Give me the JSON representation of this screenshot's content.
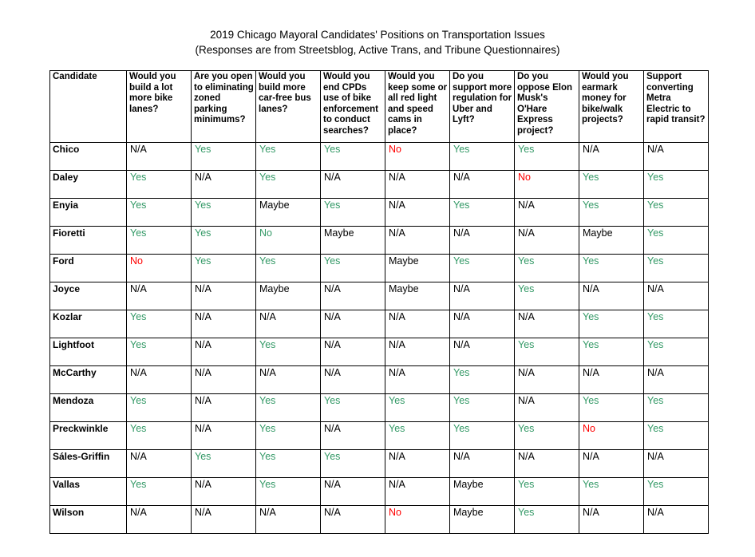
{
  "title": "2019 Chicago Mayoral Candidates' Positions on Transportation Issues",
  "subtitle": "(Responses are from Streetsblog, Active Trans, and Tribune Questionnaires)",
  "colors": {
    "yes_green": "#339966",
    "no_red": "#ff0000",
    "neutral_black": "#000000"
  },
  "table": {
    "columns": [
      "Candidate",
      "Would you build a lot more bike lanes?",
      "Are you open to eliminating zoned parking minimums?",
      "Would you build more car-free bus lanes?",
      "Would you end CPDs use of bike enforcement to conduct searches?",
      "Would you keep some or all red light and speed cams in place?",
      "Do you support more regulation for Uber and Lyft?",
      "Do you oppose Elon Musk's O'Hare Express project?",
      "Would you earmark money for bike/walk projects?",
      "Support converting Metra Electric to rapid transit?"
    ],
    "rows": [
      {
        "candidate": "Chico",
        "answers": [
          {
            "text": "N/A",
            "color": "neutral"
          },
          {
            "text": "Yes",
            "color": "green"
          },
          {
            "text": "Yes",
            "color": "green"
          },
          {
            "text": "Yes",
            "color": "green"
          },
          {
            "text": "No",
            "color": "red"
          },
          {
            "text": "Yes",
            "color": "green"
          },
          {
            "text": "Yes",
            "color": "green"
          },
          {
            "text": "N/A",
            "color": "neutral"
          },
          {
            "text": "N/A",
            "color": "neutral"
          }
        ]
      },
      {
        "candidate": "Daley",
        "answers": [
          {
            "text": "Yes",
            "color": "green"
          },
          {
            "text": "N/A",
            "color": "neutral"
          },
          {
            "text": "Yes",
            "color": "green"
          },
          {
            "text": "N/A",
            "color": "neutral"
          },
          {
            "text": "N/A",
            "color": "neutral"
          },
          {
            "text": "N/A",
            "color": "neutral"
          },
          {
            "text": "No",
            "color": "red"
          },
          {
            "text": "Yes",
            "color": "green"
          },
          {
            "text": "Yes",
            "color": "green"
          }
        ]
      },
      {
        "candidate": "Enyia",
        "answers": [
          {
            "text": "Yes",
            "color": "green"
          },
          {
            "text": "Yes",
            "color": "green"
          },
          {
            "text": "Maybe",
            "color": "neutral"
          },
          {
            "text": "Yes",
            "color": "green"
          },
          {
            "text": "N/A",
            "color": "neutral"
          },
          {
            "text": "Yes",
            "color": "green"
          },
          {
            "text": "N/A",
            "color": "neutral"
          },
          {
            "text": "Yes",
            "color": "green"
          },
          {
            "text": "Yes",
            "color": "green"
          }
        ]
      },
      {
        "candidate": "Fioretti",
        "answers": [
          {
            "text": "Yes",
            "color": "green"
          },
          {
            "text": "Yes",
            "color": "green"
          },
          {
            "text": "No",
            "color": "green"
          },
          {
            "text": "Maybe",
            "color": "neutral"
          },
          {
            "text": "N/A",
            "color": "neutral"
          },
          {
            "text": "N/A",
            "color": "neutral"
          },
          {
            "text": "N/A",
            "color": "neutral"
          },
          {
            "text": "Maybe",
            "color": "neutral"
          },
          {
            "text": "Yes",
            "color": "green"
          }
        ]
      },
      {
        "candidate": "Ford",
        "answers": [
          {
            "text": "No",
            "color": "red"
          },
          {
            "text": "Yes",
            "color": "green"
          },
          {
            "text": "Yes",
            "color": "green"
          },
          {
            "text": "Yes",
            "color": "green"
          },
          {
            "text": "Maybe",
            "color": "neutral"
          },
          {
            "text": "Yes",
            "color": "green"
          },
          {
            "text": "Yes",
            "color": "green"
          },
          {
            "text": "Yes",
            "color": "green"
          },
          {
            "text": "Yes",
            "color": "green"
          }
        ]
      },
      {
        "candidate": "Joyce",
        "answers": [
          {
            "text": "N/A",
            "color": "neutral"
          },
          {
            "text": "N/A",
            "color": "neutral"
          },
          {
            "text": "Maybe",
            "color": "neutral"
          },
          {
            "text": "N/A",
            "color": "neutral"
          },
          {
            "text": "Maybe",
            "color": "neutral"
          },
          {
            "text": "N/A",
            "color": "neutral"
          },
          {
            "text": "Yes",
            "color": "green"
          },
          {
            "text": "N/A",
            "color": "neutral"
          },
          {
            "text": "N/A",
            "color": "neutral"
          }
        ]
      },
      {
        "candidate": "Kozlar",
        "answers": [
          {
            "text": "Yes",
            "color": "green"
          },
          {
            "text": "N/A",
            "color": "neutral"
          },
          {
            "text": "N/A",
            "color": "neutral"
          },
          {
            "text": "N/A",
            "color": "neutral"
          },
          {
            "text": "N/A",
            "color": "neutral"
          },
          {
            "text": "N/A",
            "color": "neutral"
          },
          {
            "text": "N/A",
            "color": "neutral"
          },
          {
            "text": "Yes",
            "color": "green"
          },
          {
            "text": "Yes",
            "color": "green"
          }
        ]
      },
      {
        "candidate": "Lightfoot",
        "answers": [
          {
            "text": "Yes",
            "color": "green"
          },
          {
            "text": "N/A",
            "color": "neutral"
          },
          {
            "text": "Yes",
            "color": "green"
          },
          {
            "text": "N/A",
            "color": "neutral"
          },
          {
            "text": "N/A",
            "color": "neutral"
          },
          {
            "text": "N/A",
            "color": "neutral"
          },
          {
            "text": "Yes",
            "color": "green"
          },
          {
            "text": "Yes",
            "color": "green"
          },
          {
            "text": "Yes",
            "color": "green"
          }
        ]
      },
      {
        "candidate": "McCarthy",
        "answers": [
          {
            "text": "N/A",
            "color": "neutral"
          },
          {
            "text": "N/A",
            "color": "neutral"
          },
          {
            "text": "N/A",
            "color": "neutral"
          },
          {
            "text": "N/A",
            "color": "neutral"
          },
          {
            "text": "N/A",
            "color": "neutral"
          },
          {
            "text": "Yes",
            "color": "green"
          },
          {
            "text": "N/A",
            "color": "neutral"
          },
          {
            "text": "N/A",
            "color": "neutral"
          },
          {
            "text": "N/A",
            "color": "neutral"
          }
        ]
      },
      {
        "candidate": "Mendoza",
        "answers": [
          {
            "text": "Yes",
            "color": "green"
          },
          {
            "text": "N/A",
            "color": "neutral"
          },
          {
            "text": "Yes",
            "color": "green"
          },
          {
            "text": "Yes",
            "color": "green"
          },
          {
            "text": "Yes",
            "color": "green"
          },
          {
            "text": "Yes",
            "color": "green"
          },
          {
            "text": "N/A",
            "color": "neutral"
          },
          {
            "text": "Yes",
            "color": "green"
          },
          {
            "text": "Yes",
            "color": "green"
          }
        ]
      },
      {
        "candidate": "Preckwinkle",
        "answers": [
          {
            "text": "Yes",
            "color": "green"
          },
          {
            "text": "N/A",
            "color": "neutral"
          },
          {
            "text": "Yes",
            "color": "green"
          },
          {
            "text": "N/A",
            "color": "neutral"
          },
          {
            "text": "Yes",
            "color": "green"
          },
          {
            "text": "Yes",
            "color": "green"
          },
          {
            "text": "Yes",
            "color": "green"
          },
          {
            "text": "No",
            "color": "red"
          },
          {
            "text": "Yes",
            "color": "green"
          }
        ]
      },
      {
        "candidate": "Sáles-Griffin",
        "answers": [
          {
            "text": "N/A",
            "color": "neutral"
          },
          {
            "text": "Yes",
            "color": "green"
          },
          {
            "text": "Yes",
            "color": "green"
          },
          {
            "text": "Yes",
            "color": "green"
          },
          {
            "text": "N/A",
            "color": "neutral"
          },
          {
            "text": "N/A",
            "color": "neutral"
          },
          {
            "text": "N/A",
            "color": "neutral"
          },
          {
            "text": "N/A",
            "color": "neutral"
          },
          {
            "text": "N/A",
            "color": "neutral"
          }
        ]
      },
      {
        "candidate": "Vallas",
        "answers": [
          {
            "text": "Yes",
            "color": "green"
          },
          {
            "text": "N/A",
            "color": "neutral"
          },
          {
            "text": "Yes",
            "color": "green"
          },
          {
            "text": "N/A",
            "color": "neutral"
          },
          {
            "text": "N/A",
            "color": "neutral"
          },
          {
            "text": "Maybe",
            "color": "neutral"
          },
          {
            "text": "Yes",
            "color": "green"
          },
          {
            "text": "Yes",
            "color": "green"
          },
          {
            "text": "Yes",
            "color": "green"
          }
        ]
      },
      {
        "candidate": "Wilson",
        "answers": [
          {
            "text": "N/A",
            "color": "neutral"
          },
          {
            "text": "N/A",
            "color": "neutral"
          },
          {
            "text": "N/A",
            "color": "neutral"
          },
          {
            "text": "N/A",
            "color": "neutral"
          },
          {
            "text": "No",
            "color": "red"
          },
          {
            "text": "Maybe",
            "color": "neutral"
          },
          {
            "text": "Yes",
            "color": "green"
          },
          {
            "text": "N/A",
            "color": "neutral"
          },
          {
            "text": "N/A",
            "color": "neutral"
          }
        ]
      }
    ]
  },
  "chart_data": {
    "type": "table",
    "title": "2019 Chicago Mayoral Candidates' Positions on Transportation Issues",
    "subtitle": "(Responses are from Streetsblog, Active Trans, and Tribune Questionnaires)",
    "columns": [
      "Candidate",
      "Would you build a lot more bike lanes?",
      "Are you open to eliminating zoned parking minimums?",
      "Would you build more car-free bus lanes?",
      "Would you end CPDs use of bike enforcement to conduct searches?",
      "Would you keep some or all red light and speed cams in place?",
      "Do you support more regulation for Uber and Lyft?",
      "Do you oppose Elon Musk's O'Hare Express project?",
      "Would you earmark money for bike/walk projects?",
      "Support converting Metra Electric to rapid transit?"
    ],
    "rows": [
      [
        "Chico",
        "N/A",
        "Yes",
        "Yes",
        "Yes",
        "No",
        "Yes",
        "Yes",
        "N/A",
        "N/A"
      ],
      [
        "Daley",
        "Yes",
        "N/A",
        "Yes",
        "N/A",
        "N/A",
        "N/A",
        "No",
        "Yes",
        "Yes"
      ],
      [
        "Enyia",
        "Yes",
        "Yes",
        "Maybe",
        "Yes",
        "N/A",
        "Yes",
        "N/A",
        "Yes",
        "Yes"
      ],
      [
        "Fioretti",
        "Yes",
        "Yes",
        "No",
        "Maybe",
        "N/A",
        "N/A",
        "N/A",
        "Maybe",
        "Yes"
      ],
      [
        "Ford",
        "No",
        "Yes",
        "Yes",
        "Yes",
        "Maybe",
        "Yes",
        "Yes",
        "Yes",
        "Yes"
      ],
      [
        "Joyce",
        "N/A",
        "N/A",
        "Maybe",
        "N/A",
        "Maybe",
        "N/A",
        "Yes",
        "N/A",
        "N/A"
      ],
      [
        "Kozlar",
        "Yes",
        "N/A",
        "N/A",
        "N/A",
        "N/A",
        "N/A",
        "N/A",
        "Yes",
        "Yes"
      ],
      [
        "Lightfoot",
        "Yes",
        "N/A",
        "Yes",
        "N/A",
        "N/A",
        "N/A",
        "Yes",
        "Yes",
        "Yes"
      ],
      [
        "McCarthy",
        "N/A",
        "N/A",
        "N/A",
        "N/A",
        "N/A",
        "Yes",
        "N/A",
        "N/A",
        "N/A"
      ],
      [
        "Mendoza",
        "Yes",
        "N/A",
        "Yes",
        "Yes",
        "Yes",
        "Yes",
        "N/A",
        "Yes",
        "Yes"
      ],
      [
        "Preckwinkle",
        "Yes",
        "N/A",
        "Yes",
        "N/A",
        "Yes",
        "Yes",
        "Yes",
        "No",
        "Yes"
      ],
      [
        "Sáles-Griffin",
        "N/A",
        "Yes",
        "Yes",
        "Yes",
        "N/A",
        "N/A",
        "N/A",
        "N/A",
        "N/A"
      ],
      [
        "Vallas",
        "Yes",
        "N/A",
        "Yes",
        "N/A",
        "N/A",
        "Maybe",
        "Yes",
        "Yes",
        "Yes"
      ],
      [
        "Wilson",
        "N/A",
        "N/A",
        "N/A",
        "N/A",
        "No",
        "Maybe",
        "Yes",
        "N/A",
        "N/A"
      ]
    ]
  }
}
